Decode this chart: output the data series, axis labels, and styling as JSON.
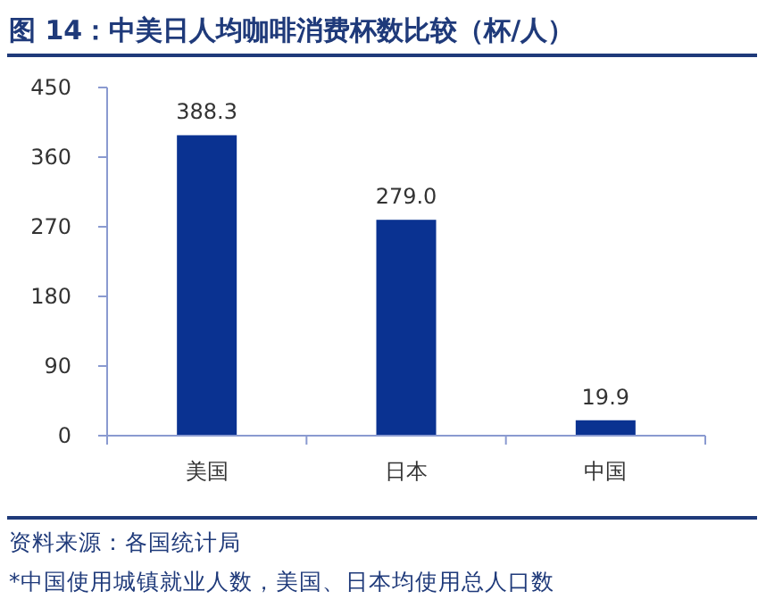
{
  "chart_data": {
    "type": "bar",
    "title": "图 14：中美日人均咖啡消费杯数比较（杯/人）",
    "categories": [
      "美国",
      "日本",
      "中国"
    ],
    "values": [
      388.3,
      279.0,
      19.9
    ],
    "value_labels": [
      "388.3",
      "279.0",
      "19.9"
    ],
    "color": "#0a3291",
    "ylim": [
      0,
      450
    ],
    "yticks": [
      0,
      90,
      180,
      270,
      360,
      450
    ],
    "grid": false,
    "annotations": [
      "资料来源：各国统计局",
      "*中国使用城镇就业人数，美国、日本均使用总人口数"
    ]
  }
}
